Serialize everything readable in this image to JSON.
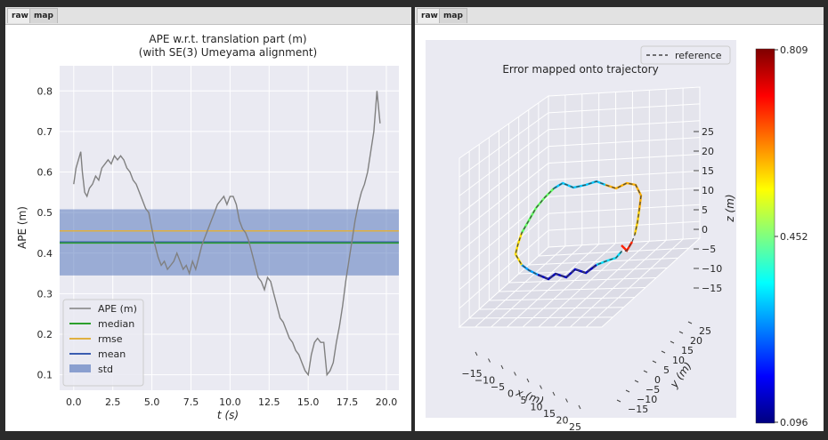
{
  "left_panel": {
    "tabs": [
      {
        "label": "raw"
      },
      {
        "label": "map"
      }
    ]
  },
  "right_panel": {
    "tabs": [
      {
        "label": "raw"
      },
      {
        "label": "map"
      }
    ]
  },
  "colors": {
    "window_bg": "#2b2b2b",
    "plot_bg": "#eaeaf2",
    "ape": "#808080",
    "median": "#2ca02c",
    "rmse": "#e0b040",
    "mean": "#3a5cb0",
    "std": "#4a6db8"
  },
  "chart_data": [
    {
      "type": "line",
      "title": "APE w.r.t. translation part (m)",
      "subtitle": "(with SE(3) Umeyama alignment)",
      "xlabel": "t (s)",
      "ylabel": "APE (m)",
      "xlim": [
        -0.9,
        20.8
      ],
      "ylim": [
        0.062,
        0.862
      ],
      "xticks": [
        "0.0",
        "2.5",
        "5.0",
        "7.5",
        "10.0",
        "12.5",
        "15.0",
        "17.5",
        "20.0"
      ],
      "yticks": [
        "0.1",
        "0.2",
        "0.3",
        "0.4",
        "0.5",
        "0.6",
        "0.7",
        "0.8"
      ],
      "grid": true,
      "legend_position": "lower-left",
      "legend": [
        "APE (m)",
        "median",
        "rmse",
        "mean",
        "std"
      ],
      "statistics": {
        "median": 0.425,
        "rmse": 0.455,
        "mean": 0.427,
        "std_low": 0.345,
        "std_high": 0.508
      },
      "series": [
        {
          "name": "APE (m)",
          "x": [
            0.0,
            0.15,
            0.3,
            0.45,
            0.55,
            0.7,
            0.85,
            1.0,
            1.2,
            1.4,
            1.6,
            1.8,
            2.0,
            2.2,
            2.4,
            2.6,
            2.8,
            3.0,
            3.2,
            3.4,
            3.6,
            3.8,
            4.0,
            4.2,
            4.4,
            4.6,
            4.8,
            5.0,
            5.2,
            5.4,
            5.6,
            5.8,
            6.0,
            6.2,
            6.4,
            6.6,
            6.8,
            7.0,
            7.2,
            7.4,
            7.6,
            7.8,
            8.0,
            8.2,
            8.4,
            8.6,
            8.8,
            9.0,
            9.2,
            9.4,
            9.6,
            9.8,
            10.0,
            10.2,
            10.4,
            10.6,
            10.8,
            11.0,
            11.2,
            11.4,
            11.6,
            11.8,
            12.0,
            12.2,
            12.4,
            12.6,
            12.8,
            13.0,
            13.2,
            13.4,
            13.6,
            13.8,
            14.0,
            14.2,
            14.4,
            14.6,
            14.8,
            15.0,
            15.2,
            15.4,
            15.6,
            15.8,
            16.0,
            16.2,
            16.4,
            16.6,
            16.8,
            17.0,
            17.2,
            17.4,
            17.6,
            17.8,
            18.0,
            18.2,
            18.4,
            18.6,
            18.8,
            19.0,
            19.2,
            19.4,
            19.6
          ],
          "values": [
            0.57,
            0.61,
            0.63,
            0.65,
            0.6,
            0.55,
            0.54,
            0.56,
            0.57,
            0.59,
            0.58,
            0.61,
            0.62,
            0.63,
            0.62,
            0.64,
            0.63,
            0.64,
            0.63,
            0.61,
            0.6,
            0.58,
            0.57,
            0.55,
            0.53,
            0.51,
            0.5,
            0.46,
            0.42,
            0.39,
            0.37,
            0.38,
            0.36,
            0.37,
            0.38,
            0.4,
            0.38,
            0.36,
            0.37,
            0.35,
            0.38,
            0.36,
            0.39,
            0.42,
            0.44,
            0.46,
            0.48,
            0.5,
            0.52,
            0.53,
            0.54,
            0.52,
            0.54,
            0.54,
            0.52,
            0.48,
            0.46,
            0.45,
            0.43,
            0.4,
            0.37,
            0.34,
            0.33,
            0.31,
            0.34,
            0.33,
            0.3,
            0.27,
            0.24,
            0.23,
            0.21,
            0.19,
            0.18,
            0.16,
            0.15,
            0.13,
            0.11,
            0.1,
            0.15,
            0.18,
            0.19,
            0.18,
            0.18,
            0.1,
            0.11,
            0.13,
            0.18,
            0.22,
            0.27,
            0.33,
            0.38,
            0.43,
            0.48,
            0.52,
            0.55,
            0.57,
            0.6,
            0.65,
            0.7,
            0.8,
            0.72
          ]
        }
      ]
    },
    {
      "type": "scatter",
      "title": "Error mapped onto trajectory",
      "legend": [
        "reference"
      ],
      "legend_position": "top-right",
      "xlabel": "x (m)",
      "ylabel": "y (m)",
      "zlabel": "z (m)",
      "xticks": [
        "−15",
        "−10",
        "−5",
        "0",
        "5",
        "10",
        "15",
        "20",
        "25"
      ],
      "yticks": [
        "−15",
        "−10",
        "−5",
        "0",
        "5",
        "10",
        "15",
        "20",
        "25"
      ],
      "zticks": [
        "25",
        "20",
        "15",
        "10",
        "5",
        "0",
        "−5",
        "−10",
        "−15"
      ],
      "colorbar": {
        "min": "0.096",
        "mid": "0.452",
        "max": "0.809",
        "colormap": "jet"
      }
    }
  ]
}
